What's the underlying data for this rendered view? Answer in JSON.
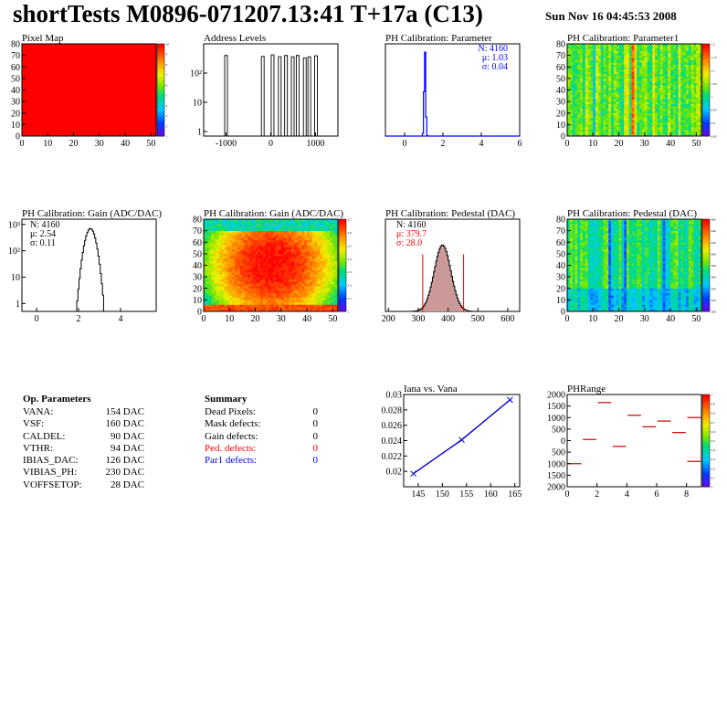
{
  "header": {
    "title": "shortTests M0896-071207.13:41 T+17a (C13)",
    "date": "Sun Nov 16 04:45:53 2008"
  },
  "colors": {
    "axis": "#000000",
    "parameter_hist": "#0000ff",
    "pedestal_fill": "#cc9999",
    "pedestal_cut": "#ff0000",
    "ped_defects": "#ff0000",
    "par1_defects": "#0000ff",
    "iv_line": "#0000cc",
    "phrange_marks": "#cc0000",
    "pixelmap_fill": "#ff0000"
  },
  "op_parameters": {
    "title": "Op. Parameters",
    "rows": [
      {
        "name": "VANA:",
        "value": "154 DAC"
      },
      {
        "name": "VSF:",
        "value": "160 DAC"
      },
      {
        "name": "CALDEL:",
        "value": "90 DAC"
      },
      {
        "name": "VTHR:",
        "value": "94 DAC"
      },
      {
        "name": "IBIAS_DAC:",
        "value": "126 DAC"
      },
      {
        "name": "VIBIAS_PH:",
        "value": "230 DAC"
      },
      {
        "name": "VOFFSETOP:",
        "value": "28 DAC"
      }
    ]
  },
  "summary": {
    "title": "Summary",
    "rows": [
      {
        "name": "Dead Pixels:",
        "value": "0",
        "color": "#000000"
      },
      {
        "name": "Mask defects:",
        "value": "0",
        "color": "#000000"
      },
      {
        "name": "Gain defects:",
        "value": "0",
        "color": "#000000"
      },
      {
        "name": "Ped. defects:",
        "value": "0",
        "color": "#ff0000"
      },
      {
        "name": "Par1 defects:",
        "value": "0",
        "color": "#0000ff"
      }
    ]
  },
  "chart_data": [
    {
      "id": "pixelmap",
      "type": "heatmap",
      "title": "Pixel Map",
      "xticks": [
        "0",
        "10",
        "20",
        "30",
        "40",
        "50"
      ],
      "yticks": [
        "0",
        "10",
        "20",
        "30",
        "40",
        "50",
        "60",
        "70",
        "80"
      ],
      "xlim": [
        0,
        52
      ],
      "ylim": [
        0,
        80
      ],
      "z_uniform": 10,
      "zticks": [
        "10",
        "9",
        "8",
        "7",
        "6",
        "5",
        "4",
        "3",
        "2",
        "1"
      ]
    },
    {
      "id": "address_levels",
      "type": "bar",
      "title": "Address Levels",
      "log_y": true,
      "xlim": [
        -1500,
        1500
      ],
      "xticks": [
        "-1000",
        "0",
        "1000"
      ],
      "yticks": [
        "1",
        "10",
        "10²"
      ],
      "peaks": [
        {
          "x": -1000,
          "height": 400
        },
        {
          "x": -180,
          "height": 370
        },
        {
          "x": 40,
          "height": 420
        },
        {
          "x": 200,
          "height": 360
        },
        {
          "x": 340,
          "height": 400
        },
        {
          "x": 490,
          "height": 360
        },
        {
          "x": 600,
          "height": 400
        },
        {
          "x": 760,
          "height": 330
        },
        {
          "x": 860,
          "height": 360
        },
        {
          "x": 1010,
          "height": 390
        }
      ]
    },
    {
      "id": "ph_param",
      "type": "bar",
      "title": "PH Calibration: Parameter",
      "xlim": [
        -1,
        6
      ],
      "xticks": [
        "0",
        "2",
        "4",
        "6"
      ],
      "stats": {
        "n": "N: 4160",
        "mean": "μ: 1.03",
        "sigma": "σ: 0.04"
      },
      "peak": {
        "mean": 1.03,
        "sigma": 0.04
      }
    },
    {
      "id": "ph_param1",
      "type": "heatmap",
      "title": "PH Calibration: Parameter1",
      "xlim": [
        0,
        52
      ],
      "ylim": [
        0,
        80
      ],
      "xticks": [
        "0",
        "10",
        "20",
        "30",
        "40",
        "50"
      ],
      "yticks": [
        "0",
        "10",
        "20",
        "30",
        "40",
        "50",
        "60",
        "70",
        "80"
      ],
      "zticks": [
        "1.2",
        "1.15",
        "1.1",
        "1.05",
        "1",
        "0.95",
        "0.9",
        "0.85"
      ]
    },
    {
      "id": "gain_hist",
      "type": "bar",
      "title": "PH Calibration: Gain (ADC/DAC)",
      "log_y": true,
      "xlim": [
        -0.7,
        5.7
      ],
      "xticks": [
        "0",
        "2",
        "4"
      ],
      "yticks": [
        "1",
        "10",
        "10²",
        "10³"
      ],
      "stats": {
        "n": "N: 4160",
        "mean": "μ: 2.54",
        "sigma": "σ: 0.11"
      },
      "peak": {
        "mean": 2.54,
        "sigma": 0.11
      }
    },
    {
      "id": "gain_map",
      "type": "heatmap",
      "title": "PH Calibration: Gain (ADC/DAC)",
      "xlim": [
        0,
        52
      ],
      "ylim": [
        0,
        80
      ],
      "xticks": [
        "0",
        "10",
        "20",
        "30",
        "40",
        "50"
      ],
      "yticks": [
        "0",
        "10",
        "20",
        "30",
        "40",
        "50",
        "60",
        "70",
        "80"
      ],
      "zticks": [
        "2.7",
        "2.6",
        "2.5",
        "2.4",
        "2.3",
        "2.2",
        "2.1",
        "2"
      ]
    },
    {
      "id": "ped_hist",
      "type": "bar",
      "title": "PH Calibration: Pedestal (DAC)",
      "xlim": [
        190,
        640
      ],
      "xticks": [
        "200",
        "300",
        "400",
        "500",
        "600"
      ],
      "stats": {
        "n": "N: 4160",
        "mean": "μ: 379.7",
        "sigma": "σ: 28.0"
      },
      "peak": {
        "mean": 379.7,
        "sigma": 28.0
      },
      "cut_lines": [
        315,
        452
      ]
    },
    {
      "id": "ped_map",
      "type": "heatmap",
      "title": "PH Calibration: Pedestal (DAC)",
      "xlim": [
        0,
        52
      ],
      "ylim": [
        0,
        80
      ],
      "xticks": [
        "0",
        "10",
        "20",
        "30",
        "40",
        "50"
      ],
      "yticks": [
        "0",
        "10",
        "20",
        "30",
        "40",
        "50",
        "60",
        "70",
        "80"
      ],
      "zticks": [
        "460",
        "440",
        "420",
        "400",
        "380",
        "360",
        "340",
        "320",
        "300"
      ]
    },
    {
      "id": "iana_vana",
      "type": "line",
      "title": "Iana vs. Vana",
      "xlim": [
        142,
        166
      ],
      "ylim": [
        0.018,
        0.03
      ],
      "xticks": [
        "145",
        "150",
        "155",
        "160",
        "165"
      ],
      "yticks": [
        "0.02",
        "0.022",
        "0.024",
        "0.026",
        "0.028",
        "0.03"
      ],
      "x": [
        144,
        154,
        164
      ],
      "y": [
        0.0197,
        0.0241,
        0.0293
      ]
    },
    {
      "id": "phrange",
      "type": "scatter",
      "title": "PHRange",
      "xlim": [
        0,
        9
      ],
      "ylim": [
        -2000,
        2000
      ],
      "xticks": [
        "0",
        "2",
        "4",
        "6",
        "8"
      ],
      "yticks": [
        "2000",
        "1500",
        "1000",
        "500",
        "0",
        "500",
        "1000",
        "1500",
        "2000"
      ],
      "zticks": [
        "1",
        "0.9",
        "0.8",
        "0.7",
        "0.6",
        "0.5",
        "0.4",
        "0.3",
        "0.2",
        "0.1",
        "0"
      ],
      "segments": [
        {
          "x": 0.5,
          "y": -1000
        },
        {
          "x": 1.5,
          "y": 50
        },
        {
          "x": 2.5,
          "y": 1650
        },
        {
          "x": 3.5,
          "y": -250
        },
        {
          "x": 4.5,
          "y": 1100
        },
        {
          "x": 5.5,
          "y": 600
        },
        {
          "x": 6.5,
          "y": 850
        },
        {
          "x": 7.5,
          "y": 350
        },
        {
          "x": 8.5,
          "y": 1000
        },
        {
          "x": 8.5,
          "y": -900
        }
      ]
    }
  ]
}
